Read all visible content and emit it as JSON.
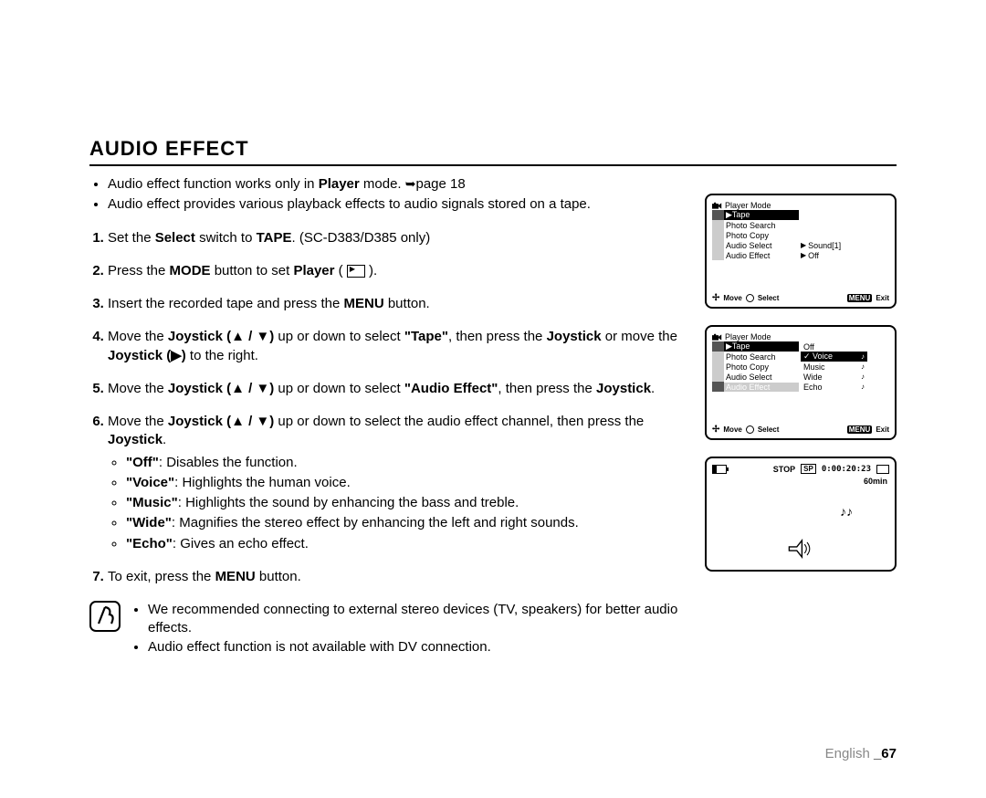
{
  "title": "AUDIO EFFECT",
  "intro": [
    {
      "pre": "Audio effect function works only in ",
      "b": "Player",
      "post": " mode. ",
      "ref": "➥",
      "ref_post": "page 18"
    },
    {
      "text": "Audio effect provides various playback effects to audio signals stored on a tape."
    }
  ],
  "steps": [
    {
      "parts": [
        {
          "t": "Set the "
        },
        {
          "b": "Select"
        },
        {
          "t": " switch to "
        },
        {
          "b": "TAPE"
        },
        {
          "t": ". (SC-D383/D385 only)"
        }
      ]
    },
    {
      "parts": [
        {
          "t": "Press the "
        },
        {
          "b": "MODE"
        },
        {
          "t": " button to set "
        },
        {
          "b": "Player"
        },
        {
          "t": " ( "
        },
        {
          "icon": "player"
        },
        {
          "t": " )."
        }
      ]
    },
    {
      "parts": [
        {
          "t": "Insert the recorded tape and press the "
        },
        {
          "b": "MENU"
        },
        {
          "t": " button."
        }
      ]
    },
    {
      "parts": [
        {
          "t": "Move the "
        },
        {
          "b": "Joystick (▲ / ▼)"
        },
        {
          "t": " up or down to select "
        },
        {
          "b": "\"Tape\""
        },
        {
          "t": ", then press the "
        },
        {
          "b": "Joystick"
        },
        {
          "t": " or move the "
        },
        {
          "b": "Joystick (▶)"
        },
        {
          "t": " to the right."
        }
      ]
    },
    {
      "parts": [
        {
          "t": "Move the "
        },
        {
          "b": "Joystick (▲ / ▼)"
        },
        {
          "t": " up or down to select "
        },
        {
          "b": "\"Audio Effect\""
        },
        {
          "t": ", then press the "
        },
        {
          "b": "Joystick"
        },
        {
          "t": "."
        }
      ]
    },
    {
      "parts": [
        {
          "t": "Move the "
        },
        {
          "b": "Joystick (▲ / ▼)"
        },
        {
          "t": " up or down to select the audio effect channel, then press the "
        },
        {
          "b": "Joystick"
        },
        {
          "t": "."
        }
      ],
      "sub": [
        {
          "b": "\"Off\"",
          "t": ": Disables the function."
        },
        {
          "b": "\"Voice\"",
          "t": ": Highlights the human voice."
        },
        {
          "b": "\"Music\"",
          "t": ": Highlights the sound by enhancing the bass and treble."
        },
        {
          "b": "\"Wide\"",
          "t": ": Magnifies the stereo effect by enhancing the left and right sounds."
        },
        {
          "b": "\"Echo\"",
          "t": ": Gives an echo effect."
        }
      ]
    },
    {
      "parts": [
        {
          "t": "To exit, press the "
        },
        {
          "b": "MENU"
        },
        {
          "t": " button."
        }
      ]
    }
  ],
  "note": [
    "We recommended connecting to external stereo devices (TV, speakers) for better audio effects.",
    "Audio effect function is not available with DV connection."
  ],
  "screen1": {
    "header": "Player Mode",
    "rows": [
      "Tape",
      "Photo Search",
      "Photo Copy",
      "Audio Select",
      "Audio Effect"
    ],
    "highlight": 0,
    "side": [
      "Sound[1]",
      "Off"
    ],
    "foot_move": "Move",
    "foot_select": "Select",
    "foot_menu": "MENU",
    "foot_exit": "Exit"
  },
  "screen2": {
    "header": "Player Mode",
    "rows": [
      "Tape",
      "Photo Search",
      "Photo Copy",
      "Audio Select",
      "Audio Effect"
    ],
    "highlight": 4,
    "opts": [
      "Off",
      "Voice",
      "Music",
      "Wide",
      "Echo"
    ],
    "sel_opt": 1,
    "foot_move": "Move",
    "foot_select": "Select",
    "foot_menu": "MENU",
    "foot_exit": "Exit"
  },
  "screen3": {
    "stop": "STOP",
    "sp": "SP",
    "time": "0:00:20:23",
    "dur": "60min"
  },
  "footer": {
    "lang": "English",
    "page": "_67"
  },
  "colors": {
    "text": "#000000",
    "bg": "#ffffff",
    "muted": "#888888",
    "icon_gray": "#cccccc"
  }
}
